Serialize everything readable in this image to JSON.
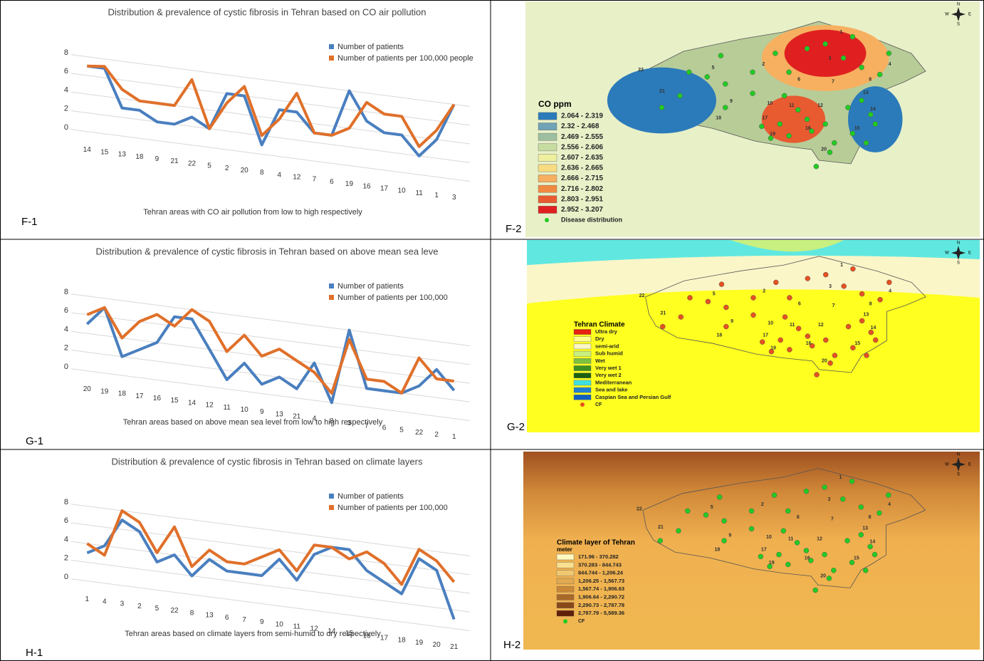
{
  "panel_labels": [
    "F-1",
    "F-2",
    "G-1",
    "G-2",
    "H-1",
    "H-2"
  ],
  "chart_data": [
    {
      "type": "line",
      "title": "Distribution  &  prevalence of cystic fibrosis in Tehran based on CO air pollution",
      "x_label": "Tehran areas with CO air pollution from low to high respectively",
      "categories": [
        "14",
        "15",
        "13",
        "18",
        "9",
        "21",
        "22",
        "5",
        "2",
        "20",
        "8",
        "4",
        "12",
        "7",
        "6",
        "19",
        "16",
        "17",
        "10",
        "11",
        "1",
        "3"
      ],
      "ylim": [
        0,
        8
      ],
      "yticks": [
        0,
        2,
        4,
        6,
        8
      ],
      "grid": true,
      "legend": "top-right",
      "series": [
        {
          "name": "Number of patients",
          "color": "#4a7fbf",
          "values": [
            7,
            7,
            3,
            3,
            2,
            2,
            3,
            2,
            6,
            6,
            1,
            5,
            5,
            3,
            3,
            8,
            5,
            4,
            4,
            2,
            4,
            8
          ]
        },
        {
          "name": "Number of patients per 100,000 people",
          "color": "#e0702a",
          "values": [
            7,
            7.2,
            5,
            4,
            4,
            4,
            7,
            2,
            5,
            7,
            2,
            4,
            7,
            3,
            3,
            4,
            7,
            6,
            6,
            3,
            5,
            8
          ]
        }
      ]
    },
    {
      "type": "line",
      "title": "Distribution & prevalence of cystic fibrosis in Tehran based on  above mean sea leve",
      "x_label": "Tehran areas  based on above mean sea level from low to high respectively",
      "categories": [
        "20",
        "19",
        "18",
        "17",
        "16",
        "15",
        "14",
        "12",
        "11",
        "10",
        "9",
        "13",
        "21",
        "4",
        "8",
        "3",
        "7",
        "6",
        "5",
        "22",
        "2",
        "1"
      ],
      "ylim": [
        0,
        8
      ],
      "yticks": [
        0,
        2,
        4,
        6,
        8
      ],
      "grid": true,
      "legend": "top-right",
      "series": [
        {
          "name": "Number of patients",
          "color": "#4a7fbf",
          "values": [
            5,
            7,
            2,
            3,
            4,
            7,
            7,
            4,
            1,
            3,
            1,
            2,
            1,
            4,
            0,
            8,
            2,
            2,
            2,
            3,
            5,
            3
          ]
        },
        {
          "name": "Number of patients per 100,000",
          "color": "#e0702a",
          "values": [
            6,
            7,
            4,
            6,
            7,
            6,
            8,
            7,
            4,
            6,
            4,
            5,
            4,
            3,
            1,
            7,
            3,
            3,
            2,
            6,
            4,
            4
          ]
        }
      ]
    },
    {
      "type": "line",
      "title": "Distribution & prevalence of cystic fibrosis in Tehran based  on climate layers",
      "x_label": "Tehran areas  based on climate layers from semi-humid to dry respectively",
      "categories": [
        "1",
        "4",
        "3",
        "2",
        "5",
        "22",
        "8",
        "13",
        "6",
        "7",
        "9",
        "10",
        "11",
        "12",
        "14",
        "15",
        "16",
        "17",
        "18",
        "19",
        "20",
        "21"
      ],
      "ylim": [
        0,
        8
      ],
      "yticks": [
        0,
        2,
        4,
        6,
        8
      ],
      "grid": true,
      "legend": "top-right",
      "series": [
        {
          "name": "Number of patients",
          "color": "#4a7fbf",
          "values": [
            3,
            4,
            7,
            6,
            3,
            4,
            2,
            4,
            3,
            3,
            3,
            5,
            3,
            6,
            7,
            7,
            5,
            4,
            3,
            7,
            6,
            1
          ]
        },
        {
          "name": "Number of patients per 100,000",
          "color": "#e0702a",
          "values": [
            4,
            3,
            8,
            7,
            4,
            7,
            3,
            5,
            4,
            4,
            5,
            6,
            4,
            7,
            7,
            6,
            7,
            6,
            4,
            8,
            7,
            5
          ]
        }
      ]
    }
  ],
  "maps": [
    {
      "legend_title": "CO ppm",
      "compass": [
        "N",
        "W",
        "E",
        "S"
      ],
      "area_labels": [
        "1",
        "2",
        "3",
        "4",
        "5",
        "6",
        "7",
        "8",
        "9",
        "10",
        "11",
        "12",
        "13",
        "14",
        "15",
        "16",
        "17",
        "18",
        "19",
        "20",
        "21",
        "22"
      ],
      "legend": [
        {
          "name": "2.064 - 2.319",
          "color": "#2b7bba"
        },
        {
          "name": "2.32 - 2.468",
          "color": "#6fa3b5"
        },
        {
          "name": "2.469 - 2.555",
          "color": "#9dbfa0"
        },
        {
          "name": "2.556 - 2.606",
          "color": "#c6dca0"
        },
        {
          "name": "2.607 - 2.635",
          "color": "#eef0a0"
        },
        {
          "name": "2.636 - 2.665",
          "color": "#f8dc80"
        },
        {
          "name": "2.666 - 2.715",
          "color": "#f6b060"
        },
        {
          "name": "2.716 - 2.802",
          "color": "#f08a40"
        },
        {
          "name": "2.803 - 2.951",
          "color": "#e85a30"
        },
        {
          "name": "2.952 - 3.207",
          "color": "#e02020"
        }
      ],
      "marker": {
        "name": "Disease distribution",
        "color": "#22cc22"
      }
    },
    {
      "legend_title": "Tehran Climate",
      "compass": [
        "N",
        "W",
        "E",
        "S"
      ],
      "area_labels": [
        "1",
        "2",
        "3",
        "4",
        "5",
        "6",
        "7",
        "8",
        "9",
        "10",
        "11",
        "12",
        "13",
        "14",
        "15",
        "16",
        "17",
        "18",
        "19",
        "20",
        "21",
        "22"
      ],
      "legend": [
        {
          "name": "Ultra dry",
          "color": "#e82010"
        },
        {
          "name": "Dry",
          "color": "#ffff90"
        },
        {
          "name": "semi-arid",
          "color": "#fbf6c8"
        },
        {
          "name": "Sub humid",
          "color": "#c8f080"
        },
        {
          "name": "Wet",
          "color": "#7cc040"
        },
        {
          "name": "Very wet 1",
          "color": "#3c9020"
        },
        {
          "name": "Very wet 2",
          "color": "#1c6010"
        },
        {
          "name": "Mediterranean",
          "color": "#40e0e0"
        },
        {
          "name": "Sea and lake",
          "color": "#2080d0"
        },
        {
          "name": "Caspian Sea and Persian Gulf",
          "color": "#1060c0"
        }
      ],
      "marker": {
        "name": "CF",
        "color": "#e85020"
      }
    },
    {
      "legend_title": "Climate layer of Tehran",
      "legend_subtitle": "meter",
      "compass": [
        "N",
        "W",
        "E",
        "S"
      ],
      "area_labels": [
        "1",
        "2",
        "3",
        "4",
        "5",
        "6",
        "7",
        "8",
        "9",
        "10",
        "11",
        "12",
        "13",
        "14",
        "15",
        "16",
        "17",
        "18",
        "19",
        "20",
        "21",
        "22"
      ],
      "legend": [
        {
          "name": "171.96 - 370.282",
          "color": "#fff8c0"
        },
        {
          "name": "370.283 - 844.743",
          "color": "#f8e090"
        },
        {
          "name": "844.744 - 1,206.24",
          "color": "#f0c870"
        },
        {
          "name": "1,206.25 - 1,567.73",
          "color": "#e0a850"
        },
        {
          "name": "1,567.74 - 1,906.63",
          "color": "#c88838"
        },
        {
          "name": "1,906.64 - 2,290.72",
          "color": "#a86828"
        },
        {
          "name": "2,290.73 - 2,787.78",
          "color": "#884818"
        },
        {
          "name": "2,787.79 - 5,589.36",
          "color": "#602008"
        }
      ],
      "marker": {
        "name": "CF",
        "color": "#22cc22"
      }
    }
  ]
}
